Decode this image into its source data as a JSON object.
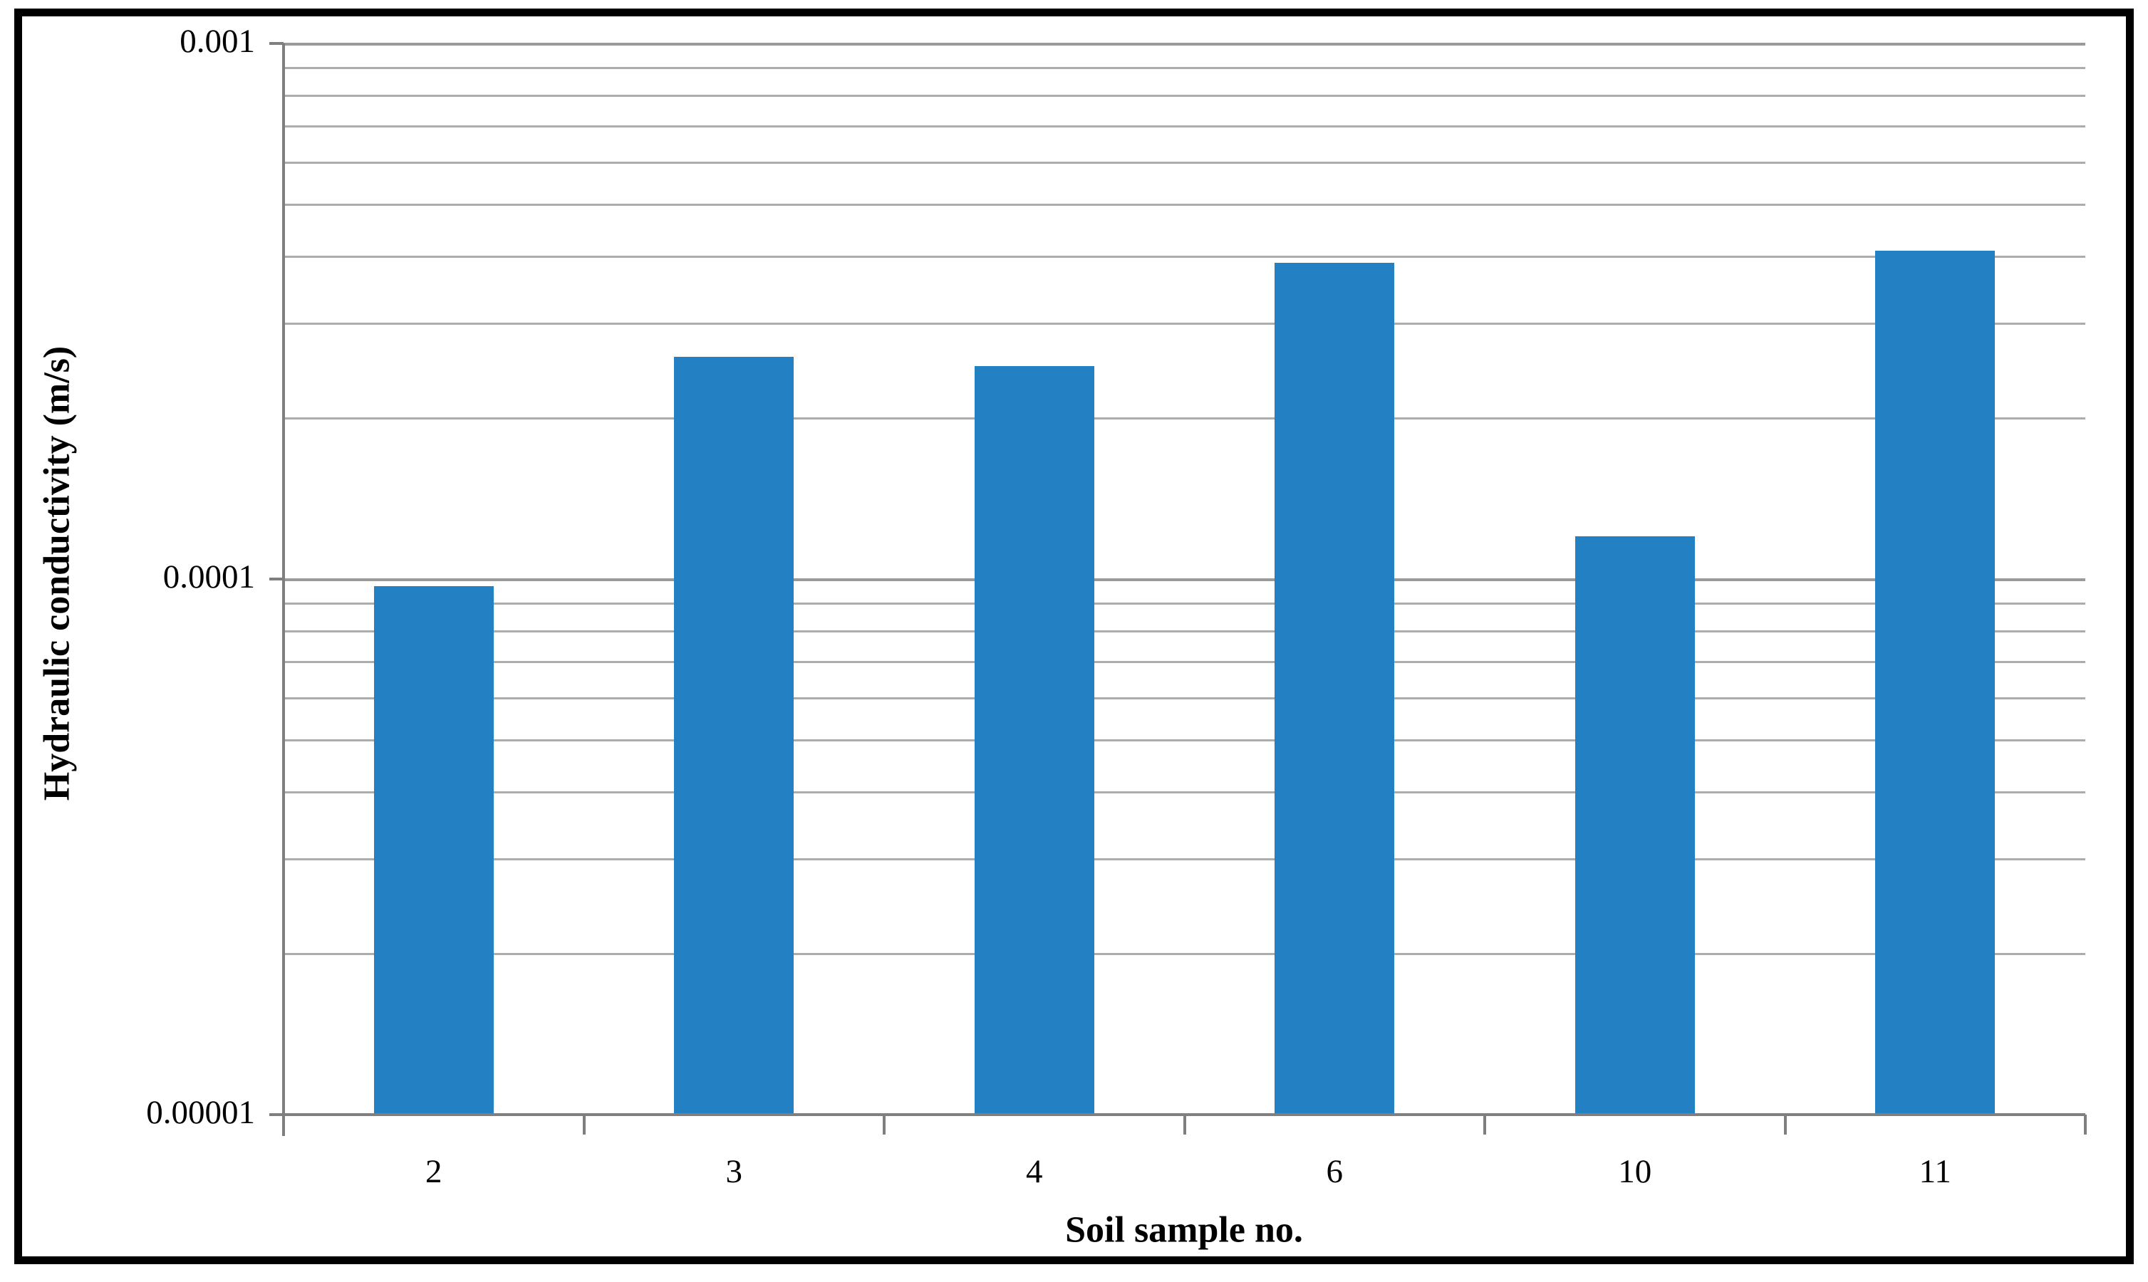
{
  "figure": {
    "background_color": "#FFFFFF",
    "border_color": "#000000"
  },
  "chart_data": {
    "type": "bar",
    "title": "",
    "xlabel": "Soil sample no.",
    "ylabel": "Hydraulic conductivity (m/s)",
    "categories": [
      "2",
      "3",
      "4",
      "6",
      "10",
      "11"
    ],
    "values": [
      9.7e-05,
      0.00026,
      0.00025,
      0.00039,
      0.00012,
      0.00041
    ],
    "series_name": "Hydraulic conductivity",
    "y_scale": "log",
    "ylim": [
      1e-05,
      0.001
    ],
    "y_tick_labels": [
      "0.001",
      "0.0001",
      "0.00001"
    ],
    "y_tick_values": [
      0.001,
      0.0001,
      1e-05
    ],
    "grid": "horizontal log minor gridlines on",
    "legend": "none",
    "bar_color": "#2380C3",
    "gridline_color": "#ACACAC",
    "major_gridline_color": "#9A9A9A",
    "axis_color": "#7F7F7F"
  }
}
